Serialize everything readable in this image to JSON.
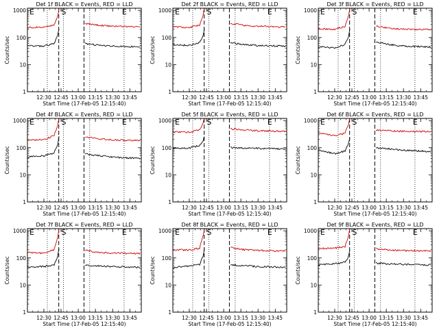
{
  "colors": {
    "events": "#000000",
    "lld": "#d00000",
    "axis": "#000000",
    "background": "#ffffff"
  },
  "panel_shared": {
    "xtick_labels": [
      "12:30",
      "12:45",
      "13:00",
      "13:15",
      "13:30",
      "13:45"
    ],
    "ytick_labels": [
      "1",
      "10",
      "100",
      "1000"
    ],
    "ylabel": "Counts/sec",
    "xlabel": "Start Time (17-Feb-05 12:15:40)",
    "markers": [
      "E",
      "S",
      "E"
    ]
  },
  "chart_data": [
    {
      "type": "line",
      "title": "Det 1f BLACK = Events, RED = LLD",
      "yscale": "log",
      "ylim": [
        1,
        1200
      ],
      "xlim": [
        "12:15:40",
        "13:55:00"
      ],
      "dotted_vlines": [
        "12:33",
        "12:47",
        "13:10",
        "13:40"
      ],
      "dashed_vlines": [
        "12:43",
        "13:05"
      ],
      "series": [
        {
          "name": "Events",
          "color": "#000000",
          "values": [
            [
              12.25,
              50
            ],
            [
              12.5,
              48
            ],
            [
              12.65,
              60
            ],
            [
              12.7,
              120
            ],
            [
              12.72,
              200
            ],
            [
              13.1,
              60
            ],
            [
              13.3,
              52
            ],
            [
              13.5,
              48
            ],
            [
              13.9,
              45
            ]
          ]
        },
        {
          "name": "LLD",
          "color": "#d00000",
          "values": [
            [
              12.25,
              240
            ],
            [
              12.5,
              230
            ],
            [
              12.65,
              300
            ],
            [
              12.7,
              600
            ],
            [
              12.72,
              1200
            ],
            [
              13.1,
              320
            ],
            [
              13.3,
              280
            ],
            [
              13.5,
              260
            ],
            [
              13.9,
              250
            ]
          ]
        }
      ]
    },
    {
      "type": "line",
      "title": "Det 2f BLACK = Events, RED = LLD",
      "yscale": "log",
      "ylim": [
        1,
        1200
      ],
      "xlim": [
        "12:15:40",
        "13:55:00"
      ],
      "dotted_vlines": [
        "12:33",
        "12:47",
        "13:10",
        "13:40"
      ],
      "dashed_vlines": [
        "12:43",
        "13:05"
      ],
      "series": [
        {
          "name": "Events",
          "color": "#000000",
          "values": [
            [
              12.25,
              55
            ],
            [
              12.5,
              50
            ],
            [
              12.65,
              65
            ],
            [
              12.7,
              110
            ],
            [
              12.72,
              200
            ],
            [
              13.1,
              62
            ],
            [
              13.3,
              55
            ],
            [
              13.5,
              50
            ],
            [
              13.9,
              48
            ]
          ]
        },
        {
          "name": "LLD",
          "color": "#d00000",
          "values": [
            [
              12.25,
              250
            ],
            [
              12.5,
              230
            ],
            [
              12.65,
              290
            ],
            [
              12.7,
              650
            ],
            [
              12.72,
              1200
            ],
            [
              13.1,
              330
            ],
            [
              13.3,
              280
            ],
            [
              13.5,
              260
            ],
            [
              13.9,
              240
            ]
          ]
        }
      ]
    },
    {
      "type": "line",
      "title": "Det 3f BLACK = Events, RED = LLD",
      "yscale": "log",
      "ylim": [
        1,
        1200
      ],
      "xlim": [
        "12:15:40",
        "13:55:00"
      ],
      "dotted_vlines": [
        "12:33",
        "12:47",
        "13:10",
        "13:40"
      ],
      "dashed_vlines": [
        "12:43",
        "13:05"
      ],
      "series": [
        {
          "name": "Events",
          "color": "#000000",
          "values": [
            [
              12.25,
              45
            ],
            [
              12.5,
              42
            ],
            [
              12.65,
              55
            ],
            [
              12.7,
              100
            ],
            [
              12.72,
              200
            ],
            [
              13.1,
              70
            ],
            [
              13.3,
              55
            ],
            [
              13.5,
              48
            ],
            [
              13.9,
              45
            ]
          ]
        },
        {
          "name": "LLD",
          "color": "#d00000",
          "values": [
            [
              12.25,
              210
            ],
            [
              12.5,
              200
            ],
            [
              12.65,
              260
            ],
            [
              12.7,
              650
            ],
            [
              12.72,
              1200
            ],
            [
              13.1,
              260
            ],
            [
              13.3,
              220
            ],
            [
              13.5,
              200
            ],
            [
              13.9,
              195
            ]
          ]
        }
      ]
    },
    {
      "type": "line",
      "title": "Det 4f BLACK = Events, RED = LLD",
      "yscale": "log",
      "ylim": [
        1,
        1200
      ],
      "xlim": [
        "12:15:40",
        "13:55:00"
      ],
      "dotted_vlines": [
        "12:33",
        "12:47",
        "13:10",
        "13:40"
      ],
      "dashed_vlines": [
        "12:43",
        "13:05"
      ],
      "series": [
        {
          "name": "Events",
          "color": "#000000",
          "values": [
            [
              12.25,
              45
            ],
            [
              12.5,
              50
            ],
            [
              12.65,
              65
            ],
            [
              12.7,
              130
            ],
            [
              12.72,
              250
            ],
            [
              13.1,
              60
            ],
            [
              13.3,
              50
            ],
            [
              13.5,
              45
            ],
            [
              13.9,
              40
            ]
          ]
        },
        {
          "name": "LLD",
          "color": "#d00000",
          "values": [
            [
              12.25,
              190
            ],
            [
              12.5,
              200
            ],
            [
              12.65,
              280
            ],
            [
              12.7,
              700
            ],
            [
              12.72,
              1200
            ],
            [
              13.1,
              250
            ],
            [
              13.3,
              210
            ],
            [
              13.5,
              195
            ],
            [
              13.9,
              180
            ]
          ]
        }
      ]
    },
    {
      "type": "line",
      "title": "Det 5f BLACK = Events, RED = LLD",
      "yscale": "log",
      "ylim": [
        1,
        1200
      ],
      "xlim": [
        "12:15:40",
        "13:55:00"
      ],
      "dotted_vlines": [
        "12:33",
        "12:47",
        "13:10",
        "13:40"
      ],
      "dashed_vlines": [
        "12:43",
        "13:05"
      ],
      "series": [
        {
          "name": "Events",
          "color": "#000000",
          "values": [
            [
              12.25,
              95
            ],
            [
              12.5,
              98
            ],
            [
              12.65,
              120
            ],
            [
              12.7,
              180
            ],
            [
              12.72,
              260
            ],
            [
              13.1,
              100
            ],
            [
              13.3,
              95
            ],
            [
              13.5,
              95
            ],
            [
              13.9,
              90
            ]
          ]
        },
        {
          "name": "LLD",
          "color": "#d00000",
          "values": [
            [
              12.25,
              380
            ],
            [
              12.5,
              370
            ],
            [
              12.65,
              450
            ],
            [
              12.7,
              800
            ],
            [
              12.72,
              1200
            ],
            [
              13.1,
              500
            ],
            [
              13.3,
              450
            ],
            [
              13.5,
              420
            ],
            [
              13.9,
              400
            ]
          ]
        }
      ]
    },
    {
      "type": "line",
      "title": "Det 6f BLACK = Events, RED = LLD",
      "yscale": "log",
      "ylim": [
        1,
        1200
      ],
      "xlim": [
        "12:15:40",
        "13:55:00"
      ],
      "dotted_vlines": [
        "12:33",
        "12:47",
        "13:10",
        "13:40"
      ],
      "dashed_vlines": [
        "12:43",
        "13:05"
      ],
      "series": [
        {
          "name": "Events",
          "color": "#000000",
          "values": [
            [
              12.25,
              80
            ],
            [
              12.5,
              60
            ],
            [
              12.65,
              75
            ],
            [
              12.7,
              140
            ],
            [
              12.72,
              250
            ],
            [
              13.1,
              100
            ],
            [
              13.3,
              90
            ],
            [
              13.5,
              80
            ],
            [
              13.9,
              72
            ]
          ]
        },
        {
          "name": "LLD",
          "color": "#d00000",
          "values": [
            [
              12.25,
              350
            ],
            [
              12.5,
              280
            ],
            [
              12.65,
              340
            ],
            [
              12.7,
              750
            ],
            [
              12.72,
              1200
            ],
            [
              13.1,
              450
            ],
            [
              13.3,
              420
            ],
            [
              13.5,
              400
            ],
            [
              13.9,
              390
            ]
          ]
        }
      ]
    },
    {
      "type": "line",
      "title": "Det 7f BLACK = Events, RED = LLD",
      "yscale": "log",
      "ylim": [
        1,
        1200
      ],
      "xlim": [
        "12:15:40",
        "13:55:00"
      ],
      "dotted_vlines": [
        "12:33",
        "12:47",
        "13:10",
        "13:40"
      ],
      "dashed_vlines": [
        "12:43",
        "13:05"
      ],
      "series": [
        {
          "name": "Events",
          "color": "#000000",
          "values": [
            [
              12.25,
              45
            ],
            [
              12.5,
              48
            ],
            [
              12.65,
              55
            ],
            [
              12.7,
              110
            ],
            [
              12.72,
              220
            ],
            [
              13.1,
              55
            ],
            [
              13.3,
              50
            ],
            [
              13.5,
              48
            ],
            [
              13.9,
              45
            ]
          ]
        },
        {
          "name": "LLD",
          "color": "#d00000",
          "values": [
            [
              12.25,
              160
            ],
            [
              12.5,
              150
            ],
            [
              12.65,
              200
            ],
            [
              12.7,
              600
            ],
            [
              12.72,
              1200
            ],
            [
              13.1,
              190
            ],
            [
              13.3,
              160
            ],
            [
              13.5,
              150
            ],
            [
              13.9,
              145
            ]
          ]
        }
      ]
    },
    {
      "type": "line",
      "title": "Det 8f BLACK = Events, RED = LLD",
      "yscale": "log",
      "ylim": [
        1,
        1200
      ],
      "xlim": [
        "12:15:40",
        "13:55:00"
      ],
      "dotted_vlines": [
        "12:33",
        "12:47",
        "13:10",
        "13:40"
      ],
      "dashed_vlines": [
        "12:43",
        "13:05"
      ],
      "series": [
        {
          "name": "Events",
          "color": "#000000",
          "values": [
            [
              12.25,
              45
            ],
            [
              12.5,
              50
            ],
            [
              12.65,
              58
            ],
            [
              12.7,
              115
            ],
            [
              12.72,
              220
            ],
            [
              13.1,
              55
            ],
            [
              13.3,
              52
            ],
            [
              13.5,
              48
            ],
            [
              13.9,
              45
            ]
          ]
        },
        {
          "name": "LLD",
          "color": "#d00000",
          "values": [
            [
              12.25,
              200
            ],
            [
              12.5,
              195
            ],
            [
              12.65,
              230
            ],
            [
              12.7,
              650
            ],
            [
              12.72,
              1200
            ],
            [
              13.1,
              240
            ],
            [
              13.3,
              200
            ],
            [
              13.5,
              190
            ],
            [
              13.9,
              180
            ]
          ]
        }
      ]
    },
    {
      "type": "line",
      "title": "Det 9f BLACK = Events, RED = LLD",
      "yscale": "log",
      "ylim": [
        1,
        1200
      ],
      "xlim": [
        "12:15:40",
        "13:55:00"
      ],
      "dotted_vlines": [
        "12:33",
        "12:47",
        "13:10",
        "13:40"
      ],
      "dashed_vlines": [
        "12:43",
        "13:05"
      ],
      "series": [
        {
          "name": "Events",
          "color": "#000000",
          "values": [
            [
              12.25,
              55
            ],
            [
              12.5,
              60
            ],
            [
              12.65,
              70
            ],
            [
              12.7,
              110
            ],
            [
              12.72,
              200
            ],
            [
              13.1,
              65
            ],
            [
              13.3,
              60
            ],
            [
              13.5,
              58
            ],
            [
              13.9,
              55
            ]
          ]
        },
        {
          "name": "LLD",
          "color": "#d00000",
          "values": [
            [
              12.25,
              220
            ],
            [
              12.5,
              230
            ],
            [
              12.65,
              260
            ],
            [
              12.7,
              650
            ],
            [
              12.72,
              1200
            ],
            [
              13.1,
              220
            ],
            [
              13.3,
              195
            ],
            [
              13.5,
              185
            ],
            [
              13.9,
              180
            ]
          ]
        }
      ]
    }
  ]
}
